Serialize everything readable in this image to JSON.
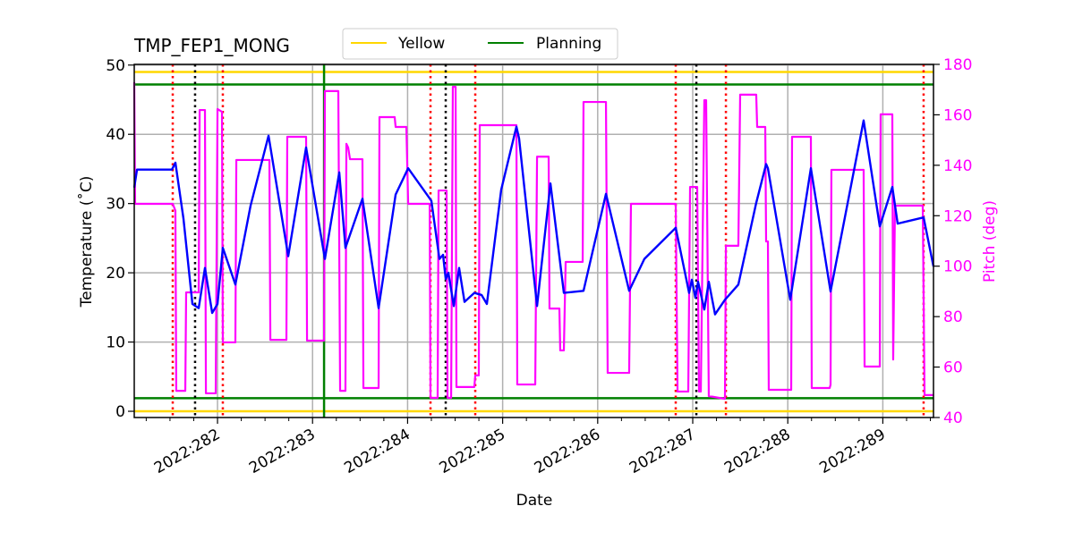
{
  "chart_data": {
    "type": "line",
    "title": "TMP_FEP1_MONG",
    "xlabel": "Date",
    "ylabel": "Temperature ($^\\circ$C)",
    "ylabel_display": "Temperature (˚C)",
    "y2label": "Pitch (deg)",
    "xlim": [
      281.124,
      289.533
    ],
    "ylim": [
      -0.9,
      50.1
    ],
    "y2lim": [
      40,
      180
    ],
    "grid": true,
    "legend_placement": "top-center",
    "x_ticks": [
      {
        "value": 282,
        "label": "2022:282"
      },
      {
        "value": 283,
        "label": "2022:283"
      },
      {
        "value": 284,
        "label": "2022:284"
      },
      {
        "value": 285,
        "label": "2022:285"
      },
      {
        "value": 286,
        "label": "2022:286"
      },
      {
        "value": 287,
        "label": "2022:287"
      },
      {
        "value": 288,
        "label": "2022:288"
      },
      {
        "value": 289,
        "label": "2022:289"
      }
    ],
    "y_ticks": [
      0,
      10,
      20,
      30,
      40,
      50
    ],
    "y2_ticks": [
      40,
      60,
      80,
      100,
      120,
      140,
      160,
      180
    ],
    "legend": [
      {
        "name": "Yellow",
        "color": "#ffd700"
      },
      {
        "name": "Planning",
        "color": "#008000"
      }
    ],
    "limit_lines": [
      {
        "name": "Yellow",
        "values": [
          49.0,
          0.0
        ],
        "color": "#ffd700"
      },
      {
        "name": "Planning",
        "values": [
          47.2,
          1.9
        ],
        "color": "#008000"
      }
    ],
    "planning_vertical": {
      "x": 283.121,
      "color": "#008000"
    },
    "red_dotted_verticals": [
      281.529,
      282.056,
      284.241,
      284.712,
      286.821,
      287.349,
      289.429
    ],
    "black_dotted_verticals": [
      281.764,
      284.401,
      287.038
    ],
    "colors": {
      "temperature": "#0000ff",
      "pitch": "#ff00ff",
      "grid": "#b0b0b0"
    },
    "temperature": {
      "x": [
        281.124,
        281.153,
        281.52,
        281.557,
        281.642,
        281.736,
        281.802,
        281.868,
        281.944,
        282.0,
        282.056,
        282.188,
        282.348,
        282.537,
        282.744,
        282.932,
        283.13,
        283.281,
        283.346,
        283.525,
        283.695,
        283.874,
        284.006,
        284.25,
        284.335,
        284.373,
        284.401,
        284.429,
        284.486,
        284.542,
        284.599,
        284.702,
        284.778,
        284.834,
        284.985,
        285.145,
        285.173,
        285.362,
        285.503,
        285.644,
        285.851,
        286.087,
        286.331,
        286.491,
        286.821,
        286.962,
        286.991,
        287.028,
        287.056,
        287.122,
        287.169,
        287.235,
        287.339,
        287.48,
        287.668,
        287.772,
        287.791,
        288.026,
        288.243,
        288.45,
        288.798,
        288.968,
        289.1,
        289.156,
        289.429,
        289.533
      ],
      "y": [
        32.3,
        34.9,
        34.9,
        35.9,
        27.8,
        15.5,
        14.9,
        20.7,
        14.2,
        15.5,
        23.6,
        18.3,
        29.7,
        39.8,
        22.4,
        38.1,
        22.0,
        34.5,
        23.6,
        30.7,
        14.9,
        31.3,
        35.1,
        30.4,
        22.0,
        22.6,
        19.1,
        20.0,
        15.2,
        20.7,
        15.8,
        17.1,
        16.8,
        15.5,
        32.0,
        41.1,
        39.4,
        15.2,
        32.9,
        17.1,
        17.4,
        31.4,
        17.4,
        22.0,
        26.5,
        17.1,
        19.0,
        16.4,
        18.7,
        14.7,
        18.7,
        14.0,
        16.1,
        18.3,
        30.1,
        35.7,
        35.1,
        16.1,
        35.1,
        17.3,
        42.0,
        26.7,
        32.4,
        27.1,
        28.0,
        20.9
      ]
    },
    "pitch": {
      "x": [
        281.124,
        281.133,
        281.529,
        281.557,
        281.566,
        281.661,
        281.67,
        281.802,
        281.812,
        281.868,
        281.878,
        281.981,
        282.0,
        282.047,
        282.056,
        282.188,
        282.198,
        282.546,
        282.556,
        282.725,
        282.734,
        282.932,
        282.942,
        283.121,
        283.13,
        283.271,
        283.29,
        283.346,
        283.356,
        283.375,
        283.394,
        283.525,
        283.535,
        283.695,
        283.704,
        283.864,
        283.874,
        283.987,
        284.006,
        284.232,
        284.241,
        284.316,
        284.326,
        284.41,
        284.42,
        284.458,
        284.476,
        284.505,
        284.514,
        284.702,
        284.712,
        284.749,
        284.759,
        285.145,
        285.154,
        285.343,
        285.362,
        285.484,
        285.493,
        285.597,
        285.606,
        285.644,
        285.663,
        285.842,
        285.851,
        286.087,
        286.105,
        286.331,
        286.35,
        286.821,
        286.84,
        286.953,
        286.972,
        287.047,
        287.066,
        287.085,
        287.122,
        287.141,
        287.169,
        287.339,
        287.349,
        287.48,
        287.499,
        287.668,
        287.678,
        287.763,
        287.772,
        287.791,
        287.8,
        288.036,
        288.045,
        288.243,
        288.252,
        288.441,
        288.45,
        288.459,
        288.798,
        288.808,
        288.968,
        288.977,
        289.1,
        289.109,
        289.128,
        289.42,
        289.439,
        289.533
      ],
      "y": [
        172.9,
        124.7,
        124.7,
        122.0,
        50.6,
        50.6,
        89.6,
        89.6,
        161.9,
        161.9,
        49.6,
        49.6,
        162.3,
        161.2,
        69.8,
        69.8,
        142.1,
        142.1,
        70.8,
        70.8,
        151.3,
        151.3,
        70.5,
        70.5,
        169.4,
        169.4,
        50.6,
        50.6,
        148.5,
        147.0,
        142.4,
        142.4,
        51.7,
        51.7,
        159.1,
        159.1,
        155.2,
        155.2,
        124.7,
        124.7,
        47.8,
        47.8,
        130.0,
        130.0,
        47.8,
        47.8,
        171.1,
        171.1,
        52.1,
        52.1,
        56.7,
        56.7,
        155.9,
        155.9,
        53.1,
        53.1,
        143.4,
        143.4,
        83.2,
        83.2,
        66.6,
        66.6,
        101.7,
        101.7,
        165.1,
        165.1,
        57.7,
        57.7,
        124.7,
        124.7,
        50.3,
        50.3,
        131.4,
        131.4,
        50.3,
        50.3,
        165.8,
        165.8,
        48.5,
        47.4,
        108.1,
        108.1,
        168.0,
        168.0,
        155.2,
        155.2,
        109.8,
        109.8,
        51.0,
        51.0,
        151.3,
        151.3,
        51.7,
        51.7,
        53.0,
        138.2,
        138.2,
        60.2,
        60.2,
        160.2,
        160.2,
        63.0,
        124.0,
        124.0,
        48.9,
        48.9
      ]
    }
  }
}
